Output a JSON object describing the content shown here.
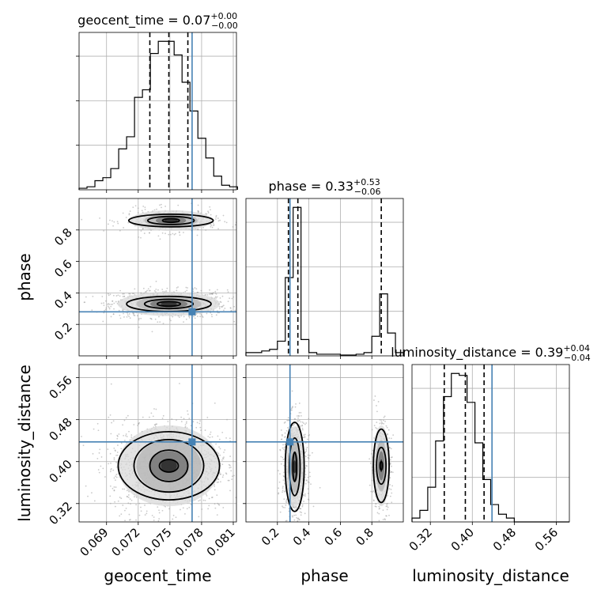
{
  "chart_data": {
    "type": "corner",
    "parameters": [
      {
        "name": "geocent_time",
        "label": "geocent_time",
        "title": {
          "prefix": "geocent_time = ",
          "median": "0.07",
          "plus": "+0.00",
          "minus": "−0.00"
        },
        "range": [
          0.0664,
          0.0813
        ],
        "ticks": [
          0.069,
          0.072,
          0.075,
          0.078,
          0.081
        ],
        "tick_labels": [
          "0.069",
          "0.072",
          "0.075",
          "0.078",
          "0.081"
        ],
        "quantiles": [
          0.0731,
          0.0749,
          0.0767
        ],
        "truth": 0.0771,
        "hist": {
          "start": 0.0664,
          "width": 0.00075,
          "counts": [
            1,
            2,
            6,
            8,
            14,
            27,
            35,
            61,
            66,
            90,
            98,
            98,
            89,
            71,
            52,
            34,
            21,
            9,
            3,
            2
          ]
        }
      },
      {
        "name": "phase",
        "label": "phase",
        "title": {
          "prefix": "phase = ",
          "median": "0.33",
          "plus": "+0.53",
          "minus": "−0.06"
        },
        "range": [
          0.0,
          1.0
        ],
        "ticks": [
          0.2,
          0.4,
          0.6,
          0.8
        ],
        "tick_labels": [
          "0.2",
          "0.4",
          "0.6",
          "0.8"
        ],
        "quantiles": [
          0.27,
          0.33,
          0.86
        ],
        "truth": 0.28,
        "hist": {
          "start": 0.0,
          "width": 0.05,
          "counts": [
            2,
            2,
            3,
            4,
            9,
            48,
            91,
            10,
            2,
            1,
            1,
            1,
            0.5,
            0.5,
            1,
            2,
            12,
            38,
            14,
            2
          ]
        }
      },
      {
        "name": "luminosity_distance",
        "label": "luminosity_distance",
        "title": {
          "prefix": "luminosity_distance = ",
          "median": "0.39",
          "plus": "+0.04",
          "minus": "−0.04"
        },
        "range": [
          0.285,
          0.585
        ],
        "ticks": [
          0.32,
          0.4,
          0.48,
          0.56
        ],
        "tick_labels": [
          "0.32",
          "0.40",
          "0.48",
          "0.56"
        ],
        "quantiles": [
          0.3465,
          0.3867,
          0.4224
        ],
        "truth": 0.4375,
        "hist": {
          "start": 0.285,
          "width": 0.015,
          "counts": [
            2,
            6,
            18,
            42,
            65,
            77,
            76,
            62,
            41,
            22,
            9,
            4,
            2,
            0,
            0,
            0,
            0,
            0,
            0,
            0
          ]
        }
      }
    ],
    "scatter_2d": [
      {
        "x": "geocent_time",
        "y": "phase",
        "modes": [
          {
            "cx": 0.0749,
            "cy": 0.33,
            "sx": 0.0022,
            "sy": 0.035,
            "weight": 0.7,
            "contours": [
              [
                0.0011,
                0.015
              ],
              [
                0.0023,
                0.03
              ],
              [
                0.004,
                0.048
              ]
            ]
          },
          {
            "cx": 0.0751,
            "cy": 0.86,
            "sx": 0.0018,
            "sy": 0.03,
            "weight": 0.3,
            "contours": [
              [
                0.0008,
                0.012
              ],
              [
                0.0022,
                0.026
              ],
              [
                0.004,
                0.04
              ]
            ]
          }
        ]
      },
      {
        "x": "geocent_time",
        "y": "luminosity_distance",
        "modes": [
          {
            "cx": 0.0749,
            "cy": 0.392,
            "sx": 0.0022,
            "sy": 0.035,
            "weight": 1.0,
            "contours": [
              [
                0.0009,
                0.012
              ],
              [
                0.0018,
                0.03
              ],
              [
                0.0033,
                0.05
              ],
              [
                0.0048,
                0.065
              ]
            ]
          }
        ]
      },
      {
        "x": "phase",
        "y": "luminosity_distance",
        "modes": [
          {
            "cx": 0.31,
            "cy": 0.39,
            "sx": 0.03,
            "sy": 0.035,
            "weight": 0.7,
            "contours": [
              [
                0.012,
                0.028
              ],
              [
                0.034,
                0.055
              ],
              [
                0.06,
                0.085
              ]
            ]
          },
          {
            "cx": 0.86,
            "cy": 0.392,
            "sx": 0.025,
            "sy": 0.035,
            "weight": 0.3,
            "contours": [
              [
                0.008,
                0.008
              ],
              [
                0.03,
                0.035
              ],
              [
                0.05,
                0.07
              ]
            ]
          }
        ]
      }
    ],
    "colors": {
      "truth": "#4682b4",
      "hist": "#000000",
      "grid": "#b0b0b0",
      "points": "#9e9e9e"
    }
  }
}
